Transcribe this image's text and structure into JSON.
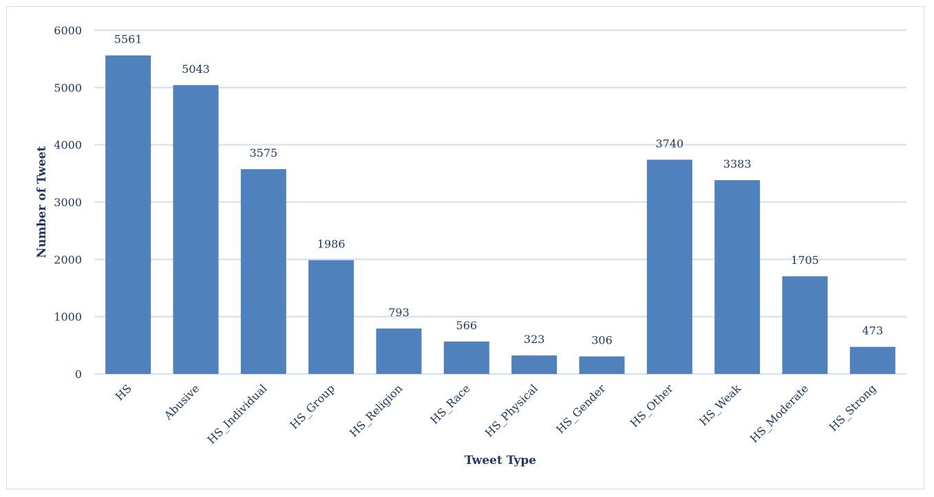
{
  "chart_data": {
    "type": "bar",
    "title": "",
    "xlabel": "Tweet Type",
    "ylabel": "Number of Tweet",
    "categories": [
      "HS",
      "Abusive",
      "HS_Individual",
      "HS_Group",
      "HS_Religion",
      "HS_Race",
      "HS_Physical",
      "HS_Gender",
      "HS_Other",
      "HS_Weak",
      "HS_Moderate",
      "HS_Strong"
    ],
    "values": [
      5561,
      5043,
      3575,
      1986,
      793,
      566,
      323,
      306,
      3740,
      3383,
      1705,
      473
    ],
    "ylim": [
      0,
      6000
    ],
    "yticks": [
      0,
      1000,
      2000,
      3000,
      4000,
      5000,
      6000
    ],
    "grid": true,
    "legend": "none",
    "data_labels": true,
    "bar_color": "#4f81bd",
    "grid_color": "#d9e3ef",
    "text_color": "#1f3864"
  }
}
